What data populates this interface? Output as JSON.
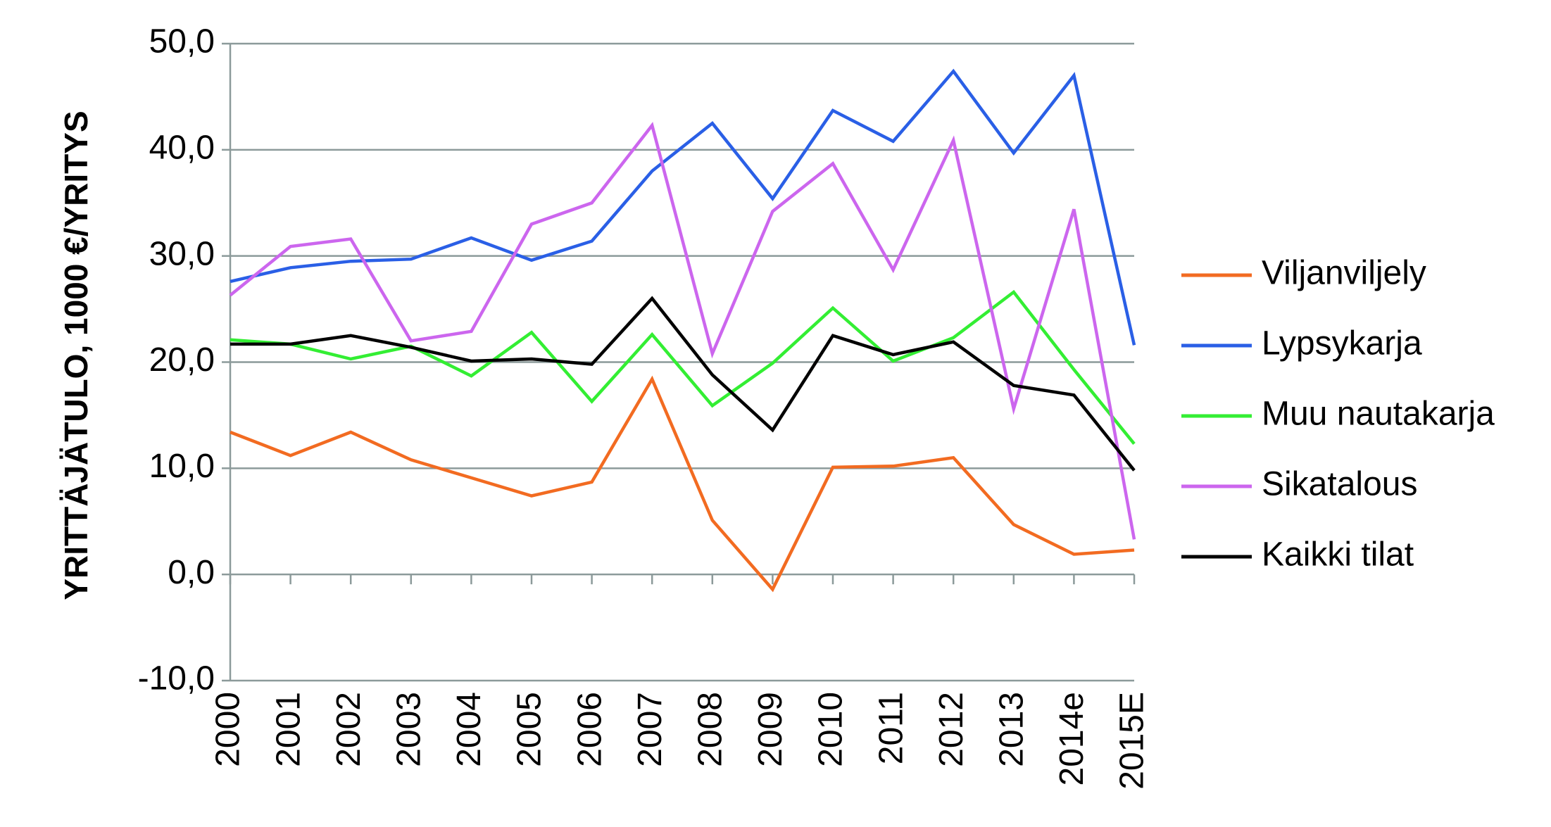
{
  "chart_data": {
    "type": "line",
    "title": "",
    "xlabel": "",
    "ylabel": "YRITTÄJÄTULO, 1000 €/YRITYS",
    "categories": [
      "2000",
      "2001",
      "2002",
      "2003",
      "2004",
      "2005",
      "2006",
      "2007",
      "2008",
      "2009",
      "2010",
      "2011",
      "2012",
      "2013",
      "2014e",
      "2015E"
    ],
    "ylim": [
      -10,
      50
    ],
    "yticks": [
      -10,
      0,
      10,
      20,
      30,
      40,
      50
    ],
    "ytick_labels": [
      "-10,0",
      "0,0",
      "10,0",
      "20,0",
      "30,0",
      "40,0",
      "50,0"
    ],
    "grid": "horizontal",
    "legend_position": "right",
    "series": [
      {
        "name": "Viljanviljely",
        "color": "#f26b21",
        "values": [
          13.4,
          11.2,
          13.4,
          10.8,
          9.1,
          7.4,
          8.7,
          18.4,
          5.1,
          -1.4,
          10.1,
          10.2,
          11.0,
          4.7,
          1.9,
          2.3
        ]
      },
      {
        "name": "Lypsykarja",
        "color": "#2a5fe6",
        "values": [
          27.6,
          28.9,
          29.5,
          29.7,
          31.7,
          29.6,
          31.4,
          38.0,
          42.5,
          35.4,
          43.7,
          40.8,
          47.4,
          39.7,
          47.0,
          21.6
        ]
      },
      {
        "name": "Muu nautakarja",
        "color": "#33ee33",
        "values": [
          22.1,
          21.7,
          20.3,
          21.5,
          18.7,
          22.8,
          16.3,
          22.6,
          15.9,
          19.9,
          25.1,
          20.1,
          22.3,
          26.6,
          19.3,
          12.3
        ]
      },
      {
        "name": "Sikatalous",
        "color": "#cc66ee",
        "values": [
          26.3,
          30.9,
          31.6,
          22.0,
          22.9,
          33.0,
          35.0,
          42.3,
          20.8,
          34.2,
          38.7,
          28.7,
          40.9,
          15.6,
          34.4,
          3.3
        ]
      },
      {
        "name": "Kaikki tilat",
        "color": "#000000",
        "values": [
          21.7,
          21.7,
          22.5,
          21.4,
          20.1,
          20.3,
          19.8,
          26.0,
          18.8,
          13.6,
          22.5,
          20.7,
          21.9,
          17.8,
          16.9,
          9.8
        ]
      }
    ]
  }
}
